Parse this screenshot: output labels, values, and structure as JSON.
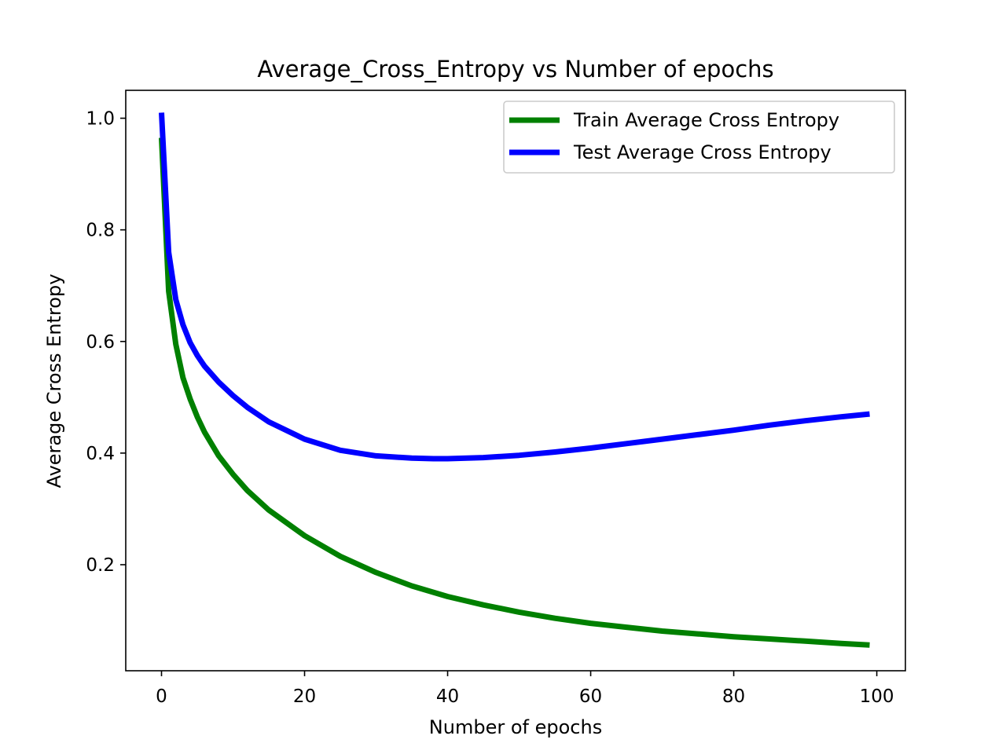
{
  "chart_data": {
    "type": "line",
    "title": "Average_Cross_Entropy vs Number of epochs",
    "xlabel": "Number of epochs",
    "ylabel": "Average Cross Entropy",
    "xlim": [
      -5,
      104
    ],
    "ylim": [
      0.01,
      1.05
    ],
    "xticks": [
      0,
      20,
      40,
      60,
      80,
      100
    ],
    "yticks": [
      0.2,
      0.4,
      0.6,
      0.8,
      1.0
    ],
    "xtick_labels": [
      "0",
      "20",
      "40",
      "60",
      "80",
      "100"
    ],
    "ytick_labels": [
      "0.2",
      "0.4",
      "0.6",
      "0.8",
      "1.0"
    ],
    "grid": false,
    "legend_position": "top-right",
    "series": [
      {
        "name": "Train Average Cross Entropy",
        "color": "#008000",
        "x": [
          0,
          1,
          2,
          3,
          4,
          5,
          6,
          8,
          10,
          12,
          15,
          20,
          25,
          30,
          35,
          40,
          45,
          50,
          55,
          60,
          65,
          70,
          75,
          80,
          85,
          90,
          95,
          99
        ],
        "y": [
          0.965,
          0.69,
          0.595,
          0.535,
          0.497,
          0.465,
          0.438,
          0.395,
          0.362,
          0.333,
          0.298,
          0.252,
          0.215,
          0.186,
          0.162,
          0.143,
          0.128,
          0.115,
          0.104,
          0.095,
          0.088,
          0.081,
          0.076,
          0.071,
          0.067,
          0.063,
          0.059,
          0.056
        ]
      },
      {
        "name": "Test Average Cross Entropy",
        "color": "#0000ff",
        "x": [
          0,
          1,
          2,
          3,
          4,
          5,
          6,
          8,
          10,
          12,
          15,
          20,
          25,
          30,
          35,
          38,
          40,
          45,
          50,
          55,
          60,
          65,
          70,
          75,
          80,
          85,
          90,
          95,
          99
        ],
        "y": [
          1.01,
          0.76,
          0.675,
          0.63,
          0.598,
          0.575,
          0.556,
          0.527,
          0.503,
          0.482,
          0.456,
          0.425,
          0.405,
          0.395,
          0.391,
          0.39,
          0.39,
          0.392,
          0.396,
          0.402,
          0.409,
          0.417,
          0.425,
          0.433,
          0.441,
          0.45,
          0.458,
          0.465,
          0.47
        ]
      }
    ]
  }
}
